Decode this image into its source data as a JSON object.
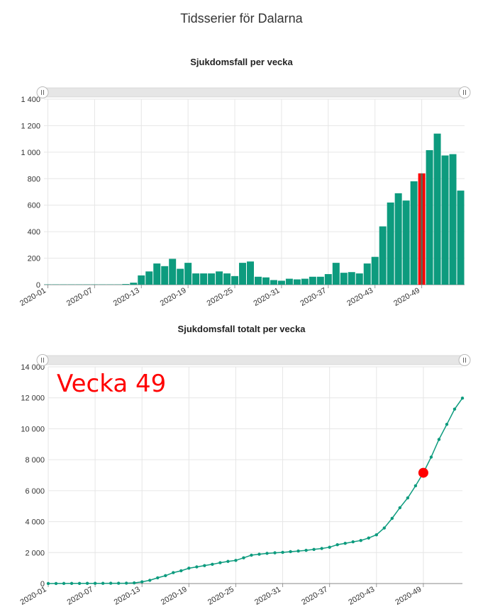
{
  "page_title": "Tidsserier för Dalarna",
  "highlight_label": "Vecka 49",
  "colors": {
    "series": "#0d9b7e",
    "highlight": "#ff0000",
    "grid": "#e6e6e6",
    "scrollbar": "#e6e6e6"
  },
  "chart_data": [
    {
      "type": "bar",
      "title": "Sjukdomsfall per vecka",
      "xlabel": "",
      "ylabel": "",
      "ylim": [
        0,
        1400
      ],
      "yticks": [
        0,
        200,
        400,
        600,
        800,
        1000,
        1200,
        1400
      ],
      "ytick_labels": [
        "0",
        "200",
        "400",
        "600",
        "800",
        "1 000",
        "1 200",
        "1 400"
      ],
      "categories": [
        "2020-01",
        "2020-02",
        "2020-03",
        "2020-04",
        "2020-05",
        "2020-06",
        "2020-07",
        "2020-08",
        "2020-09",
        "2020-10",
        "2020-11",
        "2020-12",
        "2020-13",
        "2020-14",
        "2020-15",
        "2020-16",
        "2020-17",
        "2020-18",
        "2020-19",
        "2020-20",
        "2020-21",
        "2020-22",
        "2020-23",
        "2020-24",
        "2020-25",
        "2020-26",
        "2020-27",
        "2020-28",
        "2020-29",
        "2020-30",
        "2020-31",
        "2020-32",
        "2020-33",
        "2020-34",
        "2020-35",
        "2020-36",
        "2020-37",
        "2020-38",
        "2020-39",
        "2020-40",
        "2020-41",
        "2020-42",
        "2020-43",
        "2020-44",
        "2020-45",
        "2020-46",
        "2020-47",
        "2020-48",
        "2020-49",
        "2020-50",
        "2020-51",
        "2020-52",
        "2020-53",
        "2021-01"
      ],
      "values": [
        2,
        2,
        2,
        2,
        2,
        2,
        2,
        2,
        2,
        2,
        5,
        15,
        70,
        100,
        160,
        140,
        195,
        120,
        165,
        85,
        85,
        85,
        100,
        85,
        65,
        165,
        175,
        60,
        55,
        35,
        30,
        45,
        40,
        45,
        60,
        60,
        80,
        165,
        90,
        95,
        85,
        160,
        210,
        440,
        620,
        690,
        635,
        780,
        840,
        1015,
        1140,
        975,
        985,
        710
      ],
      "xtick_labels": [
        "2020-01",
        "2020-07",
        "2020-13",
        "2020-19",
        "2020-25",
        "2020-31",
        "2020-37",
        "2020-43",
        "2020-49"
      ],
      "xtick_indices": [
        0,
        6,
        12,
        18,
        24,
        30,
        36,
        42,
        48
      ],
      "highlight_index": 48,
      "grid": true
    },
    {
      "type": "line",
      "title": "Sjukdomsfall totalt per vecka",
      "xlabel": "",
      "ylabel": "",
      "ylim": [
        0,
        14000
      ],
      "yticks": [
        0,
        2000,
        4000,
        6000,
        8000,
        10000,
        12000,
        14000
      ],
      "ytick_labels": [
        "0",
        "2 000",
        "4 000",
        "6 000",
        "8 000",
        "10 000",
        "12 000",
        "14 000"
      ],
      "values": [
        2,
        4,
        6,
        8,
        10,
        12,
        14,
        16,
        18,
        20,
        25,
        40,
        110,
        210,
        370,
        510,
        705,
        825,
        990,
        1075,
        1160,
        1245,
        1345,
        1430,
        1495,
        1660,
        1835,
        1895,
        1950,
        1985,
        2015,
        2060,
        2100,
        2145,
        2205,
        2265,
        2345,
        2510,
        2600,
        2695,
        2780,
        2940,
        3150,
        3590,
        4210,
        4900,
        5535,
        6315,
        7155,
        8170,
        9310,
        10285,
        11270,
        11980
      ],
      "xtick_labels": [
        "2020-01",
        "2020-07",
        "2020-13",
        "2020-19",
        "2020-25",
        "2020-31",
        "2020-37",
        "2020-43",
        "2020-49"
      ],
      "xtick_indices": [
        0,
        6,
        12,
        18,
        24,
        30,
        36,
        42,
        48
      ],
      "highlight_index": 48,
      "grid": true
    }
  ]
}
